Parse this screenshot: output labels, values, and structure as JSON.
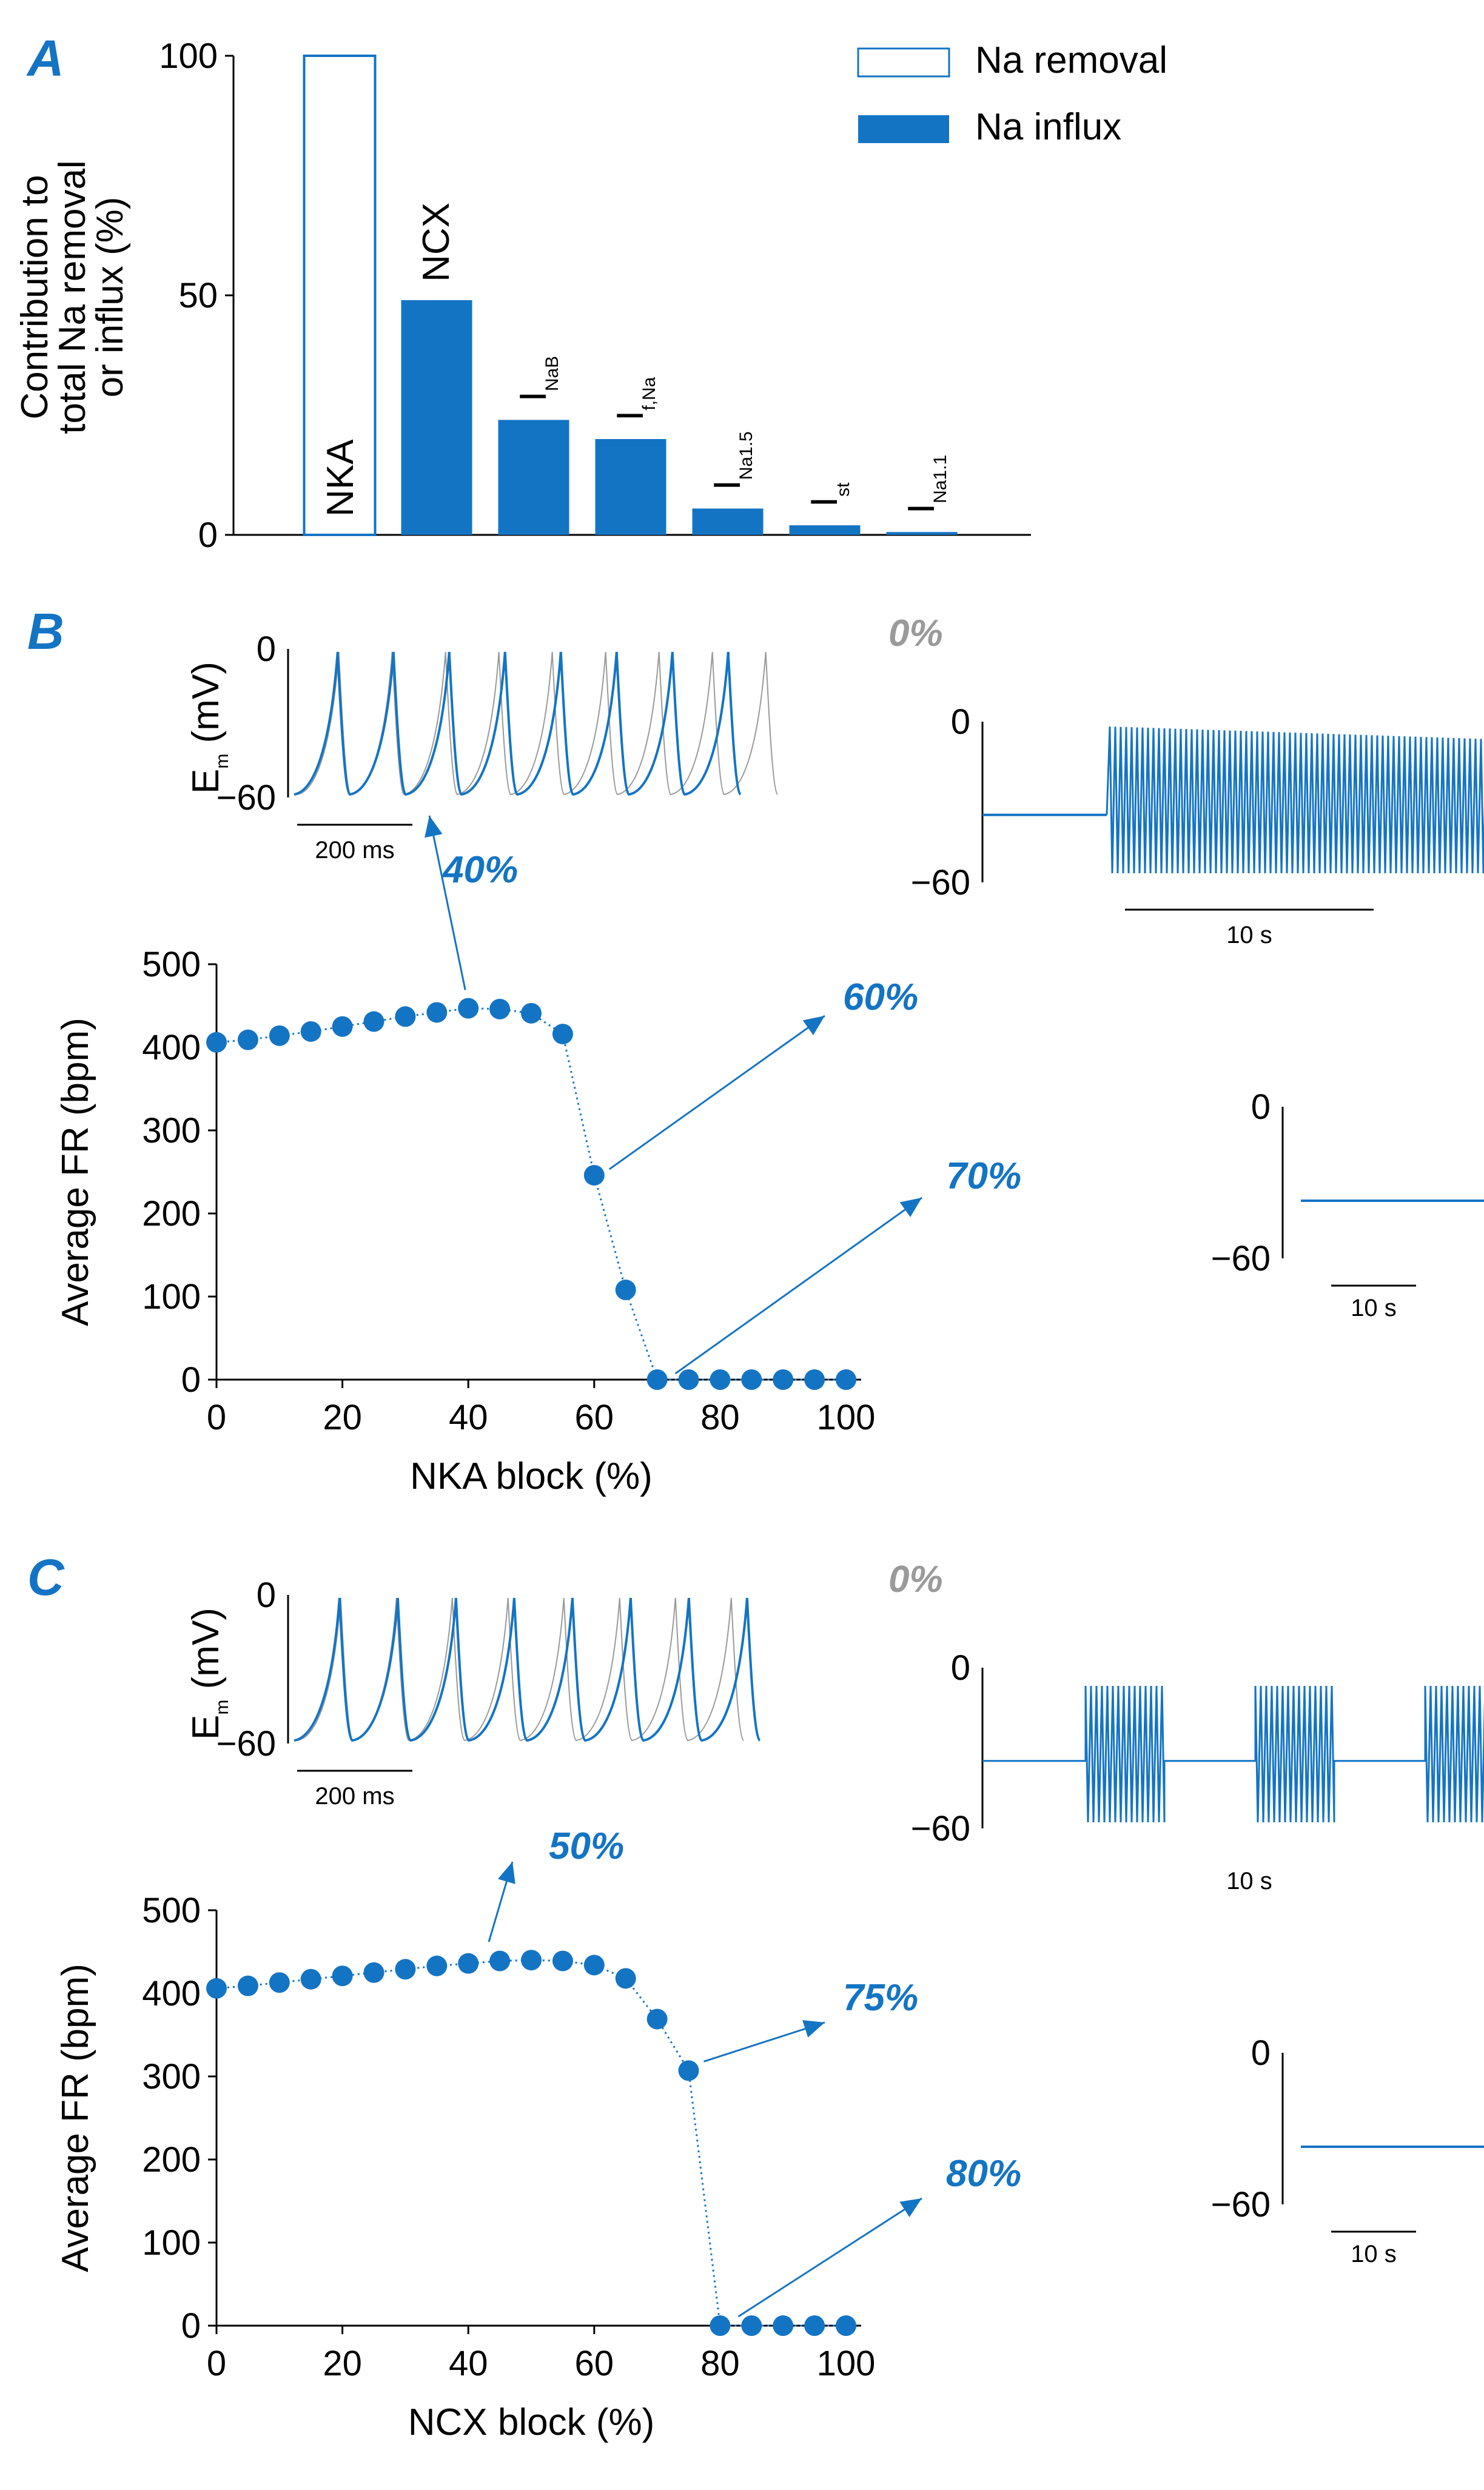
{
  "colors": {
    "blue": "#1474c4",
    "gray": "#9a9a9a",
    "black": "#000000"
  },
  "chart_data": [
    {
      "id": "A",
      "type": "bar",
      "panel_label": "A",
      "ylabel_lines": [
        "Contribution to",
        "total Na removal",
        "or influx (%)"
      ],
      "ylim": [
        0,
        100
      ],
      "yticks": [
        "0",
        "50",
        "100"
      ],
      "legend": [
        {
          "label": "Na removal",
          "style": "open"
        },
        {
          "label": "Na influx",
          "style": "filled"
        }
      ],
      "bars": [
        {
          "main": "NKA",
          "sub": "",
          "value": 100,
          "kind": "removal"
        },
        {
          "main": "NCX",
          "sub": "",
          "value": 49,
          "kind": "influx"
        },
        {
          "main": "I",
          "sub": "NaB",
          "value": 24,
          "kind": "influx"
        },
        {
          "main": "I",
          "sub": "f,Na",
          "value": 20,
          "kind": "influx"
        },
        {
          "main": "I",
          "sub": "Na1.5",
          "value": 5.5,
          "kind": "influx"
        },
        {
          "main": "I",
          "sub": "st",
          "value": 2,
          "kind": "influx"
        },
        {
          "main": "I",
          "sub": "Na1.1",
          "value": 0.6,
          "kind": "influx"
        }
      ]
    },
    {
      "id": "B",
      "type": "scatter",
      "panel_label": "B",
      "xlabel": "NKA block (%)",
      "ylabel": "Average FR (bpm)",
      "xlim": [
        0,
        100
      ],
      "ylim": [
        0,
        500
      ],
      "xticks": [
        "0",
        "20",
        "40",
        "60",
        "80",
        "100"
      ],
      "yticks": [
        "0",
        "100",
        "200",
        "300",
        "400",
        "500"
      ],
      "x": [
        0,
        5,
        10,
        15,
        20,
        25,
        30,
        35,
        40,
        45,
        50,
        55,
        60,
        65,
        70,
        75,
        80,
        85,
        90,
        95,
        100
      ],
      "y": [
        406,
        409,
        414,
        419,
        425,
        431,
        437,
        442,
        447,
        446,
        441,
        416,
        246,
        108,
        0,
        0,
        0,
        0,
        0,
        0,
        0
      ],
      "callouts": [
        "40%",
        "60%",
        "70%"
      ],
      "inset_trace": {
        "ylabel_main": "E",
        "ylabel_sub": "m",
        "ylabel_unit": "(mV)",
        "yticks": [
          "0",
          "−60"
        ],
        "scale": "200 ms",
        "control_label": "0%"
      },
      "inset_long": {
        "yticks": [
          "0",
          "−60"
        ],
        "scale": "10 s"
      },
      "inset_flat": {
        "yticks": [
          "0",
          "−60"
        ],
        "scale": "10 s"
      }
    },
    {
      "id": "C",
      "type": "scatter",
      "panel_label": "C",
      "xlabel": "NCX block (%)",
      "ylabel": "Average FR (bpm)",
      "xlim": [
        0,
        100
      ],
      "ylim": [
        0,
        500
      ],
      "xticks": [
        "0",
        "20",
        "40",
        "60",
        "80",
        "100"
      ],
      "yticks": [
        "0",
        "100",
        "200",
        "300",
        "400",
        "500"
      ],
      "x": [
        0,
        5,
        10,
        15,
        20,
        25,
        30,
        35,
        40,
        45,
        50,
        55,
        60,
        65,
        70,
        75,
        80,
        85,
        90,
        95,
        100
      ],
      "y": [
        406,
        409,
        413,
        417,
        421,
        425,
        429,
        433,
        436,
        439,
        440,
        439,
        434,
        418,
        369,
        307,
        0,
        0,
        0,
        0,
        0
      ],
      "callouts": [
        "50%",
        "75%",
        "80%"
      ],
      "inset_trace": {
        "ylabel_main": "E",
        "ylabel_sub": "m",
        "ylabel_unit": "(mV)",
        "yticks": [
          "0",
          "−60"
        ],
        "scale": "200 ms",
        "control_label": "0%"
      },
      "inset_long": {
        "yticks": [
          "0",
          "−60"
        ],
        "scale": "10 s"
      },
      "inset_flat": {
        "yticks": [
          "0",
          "−60"
        ],
        "scale": "10 s"
      }
    }
  ]
}
